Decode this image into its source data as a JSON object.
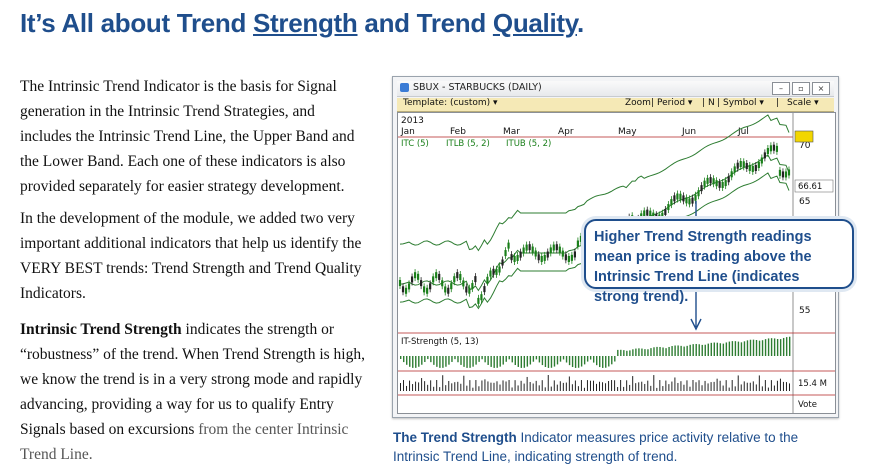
{
  "title": {
    "pre": "It’s All about Trend ",
    "u1": "Strength",
    "mid": " and Trend ",
    "u2": "Quality",
    "post": "."
  },
  "para1": "The Intrinsic Trend Indicator is the basis for Signal generation in the Intrinsic Trend Strategies, and includes the Intrinsic Trend Line, the Upper Band and the Lower Band.  Each one of these indicators is also provided separately for easier strategy development.",
  "para2": "In the development of the module, we added two very important additional indicators that help us identify the VERY BEST trends:  Trend Strength and Trend Quality Indicators.",
  "para3": {
    "bold": "Intrinsic Trend Strength",
    "text": " indicates the strength or “robustness” of the trend.  When Trend Strength is high, we know the trend is in a very strong mode and rapidly advancing, providing a way for us to qualify Entry Signals based on excursions ",
    "grey": "from the center Intrinsic Trend Line."
  },
  "window": {
    "title": "SBUX - STARBUCKS (DAILY)",
    "btn_min": "–",
    "btn_max": "▫",
    "btn_close": "×"
  },
  "toolbar": {
    "template": "Template: (custom) ▾",
    "zoom": "Zoom",
    "period": "Period ▾",
    "n": "N",
    "symbol": "Symbol ▾",
    "scale": "Scale ▾"
  },
  "chart_labels": {
    "year": "2013",
    "months": [
      "Jan",
      "Feb",
      "Mar",
      "Apr",
      "May",
      "Jun",
      "Jul"
    ],
    "itc": "ITC (5)",
    "itlb": "ITLB (5, 2)",
    "itub": "ITUB (5, 2)",
    "price_ticks": [
      "70",
      "65",
      "55"
    ],
    "last_price": "66.61",
    "strength_label": "IT-Strength (5, 13)",
    "volume_label": "15.4 M",
    "vote": "Vote"
  },
  "callout": "Higher Trend Strength readings mean price is trading above the Intrinsic Trend Line (indicates strong trend).",
  "caption": {
    "bold": "The Trend Strength",
    "text": " Indicator measures price activity relative to the Intrinsic Trend Line, indicating strength of trend."
  },
  "colors": {
    "accent": "#1f4e8c",
    "band": "#2e7d32",
    "up": "#1a7f1a",
    "down": "#222222",
    "marker": "#f2d600",
    "sep": "#b22222"
  }
}
